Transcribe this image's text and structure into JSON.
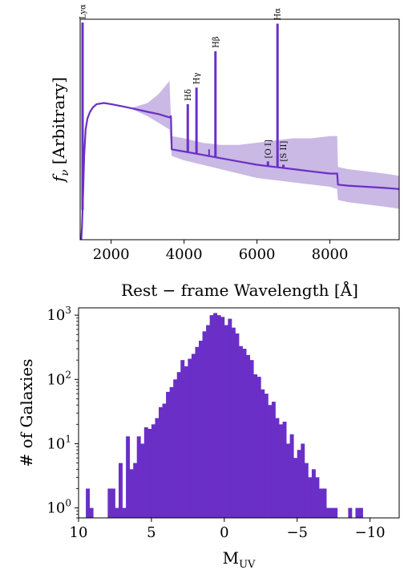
{
  "chart_data": [
    {
      "type": "line",
      "xlabel": "Rest − frame Wavelength [Å]",
      "ylabel_main": "f",
      "ylabel_sub": "ν",
      "ylabel_rest": " [Arbitrary]",
      "xlim": [
        1150,
        9900
      ],
      "xticks": [
        2000,
        4000,
        6000,
        8000
      ],
      "ylim": [
        0,
        1
      ],
      "yticks_shown": false,
      "colors": {
        "line": "#6a2fc7",
        "band": "#b8a0dc"
      },
      "continuum": {
        "x": [
          1180,
          1200,
          1230,
          1260,
          1300,
          1350,
          1420,
          1500,
          1600,
          1800,
          2000,
          2300,
          2600,
          3000,
          3300,
          3600,
          3640,
          3660,
          4000,
          4500,
          5000,
          5500,
          6000,
          6500,
          7000,
          7500,
          8000,
          8200,
          8220,
          8500,
          9000,
          9500,
          9900
        ],
        "y": [
          0.0,
          0.06,
          0.2,
          0.38,
          0.5,
          0.55,
          0.58,
          0.6,
          0.615,
          0.62,
          0.615,
          0.605,
          0.595,
          0.58,
          0.57,
          0.555,
          0.56,
          0.41,
          0.4,
          0.385,
          0.37,
          0.355,
          0.34,
          0.33,
          0.32,
          0.31,
          0.3,
          0.3,
          0.25,
          0.245,
          0.24,
          0.235,
          0.23
        ]
      },
      "band": {
        "x": [
          2600,
          3000,
          3300,
          3600,
          3660,
          4000,
          4500,
          5000,
          5500,
          6000,
          6500,
          7000,
          7500,
          8000,
          8200,
          8220,
          8500,
          9000,
          9500,
          9900
        ],
        "upper": [
          0.6,
          0.62,
          0.66,
          0.72,
          0.47,
          0.46,
          0.44,
          0.43,
          0.43,
          0.44,
          0.45,
          0.46,
          0.46,
          0.47,
          0.47,
          0.33,
          0.32,
          0.31,
          0.3,
          0.29
        ],
        "lower": [
          0.59,
          0.56,
          0.53,
          0.5,
          0.38,
          0.36,
          0.34,
          0.32,
          0.3,
          0.28,
          0.27,
          0.26,
          0.25,
          0.24,
          0.23,
          0.18,
          0.17,
          0.16,
          0.15,
          0.14
        ]
      },
      "lines": [
        {
          "label": "Lyα",
          "x": 1216,
          "peak": 0.985
        },
        {
          "label": "Hδ",
          "x": 4102,
          "peak": 0.615
        },
        {
          "label": "Hγ",
          "x": 4341,
          "peak": 0.69
        },
        {
          "label": "Hβ",
          "x": 4861,
          "peak": 0.855
        },
        {
          "label": "[O I]",
          "x": 6300,
          "peak": 0.355
        },
        {
          "label": "Hα",
          "x": 6563,
          "peak": 0.98
        },
        {
          "label": "[S II]",
          "x": 6724,
          "peak": 0.34
        }
      ],
      "minor_lines": [
        {
          "x": 4686,
          "peak": 0.41
        },
        {
          "x": 6364,
          "peak": 0.33
        }
      ]
    },
    {
      "type": "bar",
      "xlabel_main": "M",
      "xlabel_sub": "UV",
      "ylabel": "# of Galaxies",
      "xlim": [
        10,
        -12
      ],
      "xticks": [
        10,
        5,
        0,
        -5,
        -10
      ],
      "xtick_labels": [
        "10",
        "5",
        "0",
        "−5",
        "−10"
      ],
      "ylim_log": [
        0.7,
        1300
      ],
      "yscale": "log",
      "yticks": [
        1,
        10,
        100,
        1000
      ],
      "ytick_base": "10",
      "ytick_exps": [
        "0",
        "1",
        "2",
        "3"
      ],
      "colors": {
        "bar": "#6a2fc7"
      },
      "bin_edges": [
        9.5,
        9.25,
        9.0,
        8.75,
        8.5,
        8.25,
        8.0,
        7.75,
        7.5,
        7.25,
        7.0,
        6.75,
        6.5,
        6.25,
        6.0,
        5.75,
        5.5,
        5.25,
        5.0,
        4.75,
        4.5,
        4.25,
        4.0,
        3.75,
        3.5,
        3.25,
        3.0,
        2.75,
        2.5,
        2.25,
        2.0,
        1.75,
        1.5,
        1.25,
        1.0,
        0.75,
        0.5,
        0.25,
        0.0,
        -0.25,
        -0.5,
        -0.75,
        -1.0,
        -1.25,
        -1.5,
        -1.75,
        -2.0,
        -2.25,
        -2.5,
        -2.75,
        -3.0,
        -3.25,
        -3.5,
        -3.75,
        -4.0,
        -4.25,
        -4.5,
        -4.75,
        -5.0,
        -5.25,
        -5.5,
        -5.75,
        -6.0,
        -6.25,
        -6.5,
        -6.75,
        -7.0,
        -7.25,
        -7.5,
        -7.75,
        -8.0,
        -8.25,
        -8.5,
        -8.75,
        -9.0,
        -9.25,
        -9.5,
        -9.75,
        -10.0,
        -10.25,
        -10.5,
        -10.75
      ],
      "counts": [
        2,
        1,
        0,
        0,
        0,
        0,
        2,
        2,
        1,
        5,
        1,
        13,
        4,
        5,
        13,
        10,
        18,
        17,
        20,
        25,
        37,
        42,
        64,
        76,
        100,
        130,
        200,
        160,
        210,
        250,
        320,
        400,
        560,
        700,
        1000,
        1080,
        1000,
        940,
        700,
        880,
        640,
        520,
        330,
        300,
        240,
        200,
        120,
        110,
        70,
        60,
        40,
        45,
        25,
        20,
        22,
        10,
        14,
        6,
        8,
        10,
        5,
        3,
        4,
        3,
        2,
        2,
        1,
        1,
        1,
        0,
        0,
        0,
        1,
        0,
        1,
        1,
        0,
        0,
        0,
        0,
        0
      ]
    }
  ]
}
